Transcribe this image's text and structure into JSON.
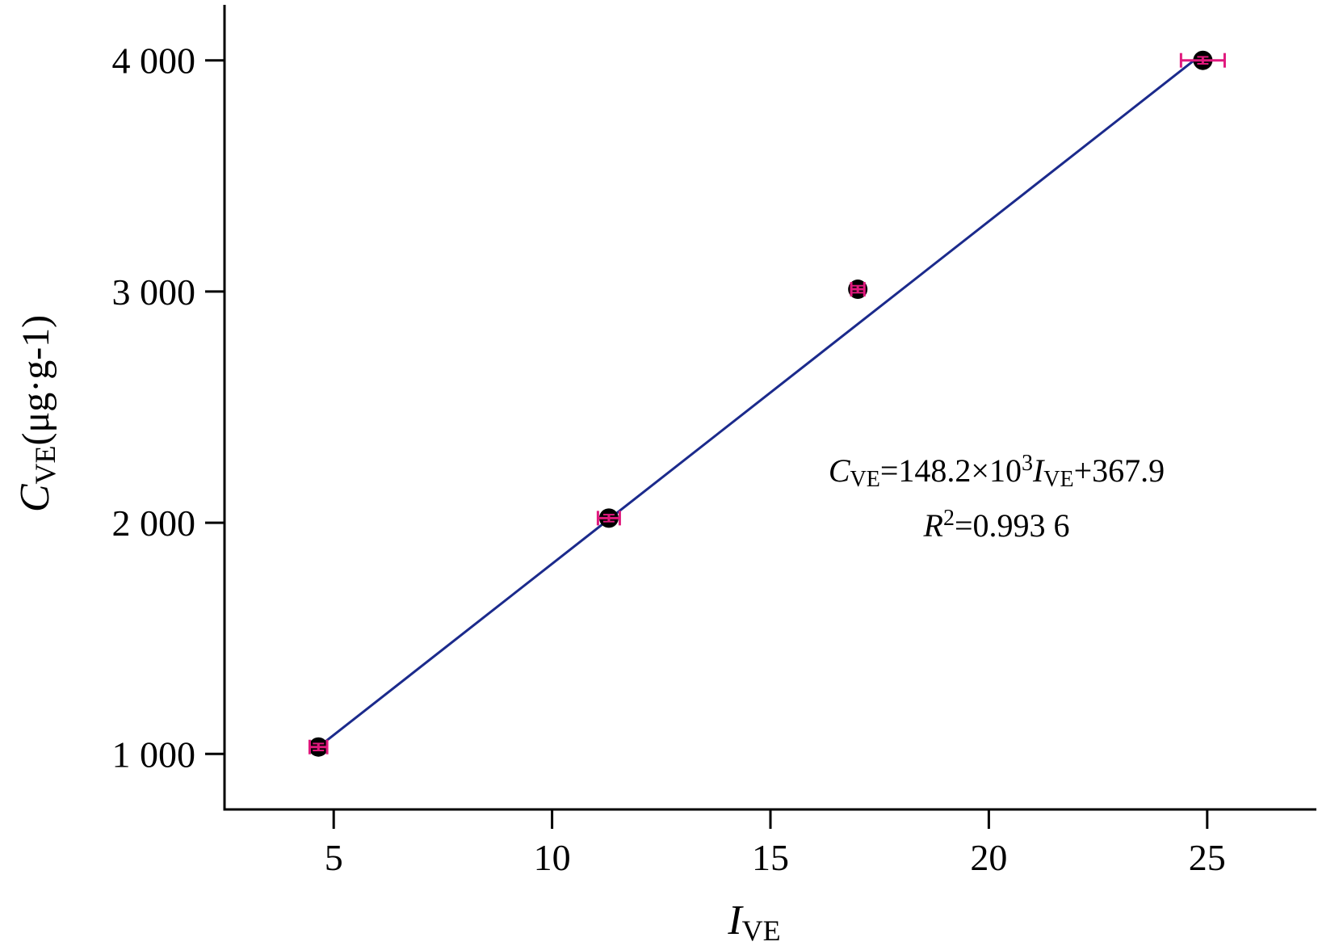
{
  "chart_data": {
    "type": "scatter",
    "x_ticks": [
      5,
      10,
      15,
      20,
      25
    ],
    "y_ticks": [
      1000,
      2000,
      3000,
      4000
    ],
    "x_tick_labels": [
      "5",
      "10",
      "15",
      "20",
      "25"
    ],
    "y_tick_labels": [
      "1 000",
      "2 000",
      "3 000",
      "4 000"
    ],
    "xlim": [
      2.5,
      27.5
    ],
    "ylim": [
      760,
      4240
    ],
    "xlabel": {
      "main": "I",
      "sub": "VE"
    },
    "ylabel": {
      "main": "C",
      "sub": "VE",
      "unit": "(μg·g-1)"
    },
    "points": [
      {
        "x": 4.65,
        "y": 1030,
        "xerr": 0.2,
        "yerr": 15
      },
      {
        "x": 11.3,
        "y": 2020,
        "xerr": 0.25,
        "yerr": 15
      },
      {
        "x": 17.0,
        "y": 3010,
        "xerr": 0.15,
        "yerr": 15
      },
      {
        "x": 24.9,
        "y": 4000,
        "xerr": 0.5,
        "yerr": 15
      }
    ],
    "fit_line": {
      "x_start": 4.65,
      "y_start": 1030,
      "x_end": 24.7,
      "y_end": 4000
    },
    "annotation": {
      "eq_c": "C",
      "eq_c_sub": "VE",
      "eq_mid": "=148.2×10",
      "eq_sup": "3",
      "eq_i": "I",
      "eq_i_sub": "VE",
      "eq_end": "+367.9",
      "r_r": "R",
      "r_sup": "2",
      "r_val": "=0.993 6"
    },
    "grid": false,
    "legend": "none",
    "colors": {
      "point": "#000000",
      "errorbar": "#e0197d",
      "fit_line": "#1b2a8c",
      "axis": "#000000"
    }
  }
}
